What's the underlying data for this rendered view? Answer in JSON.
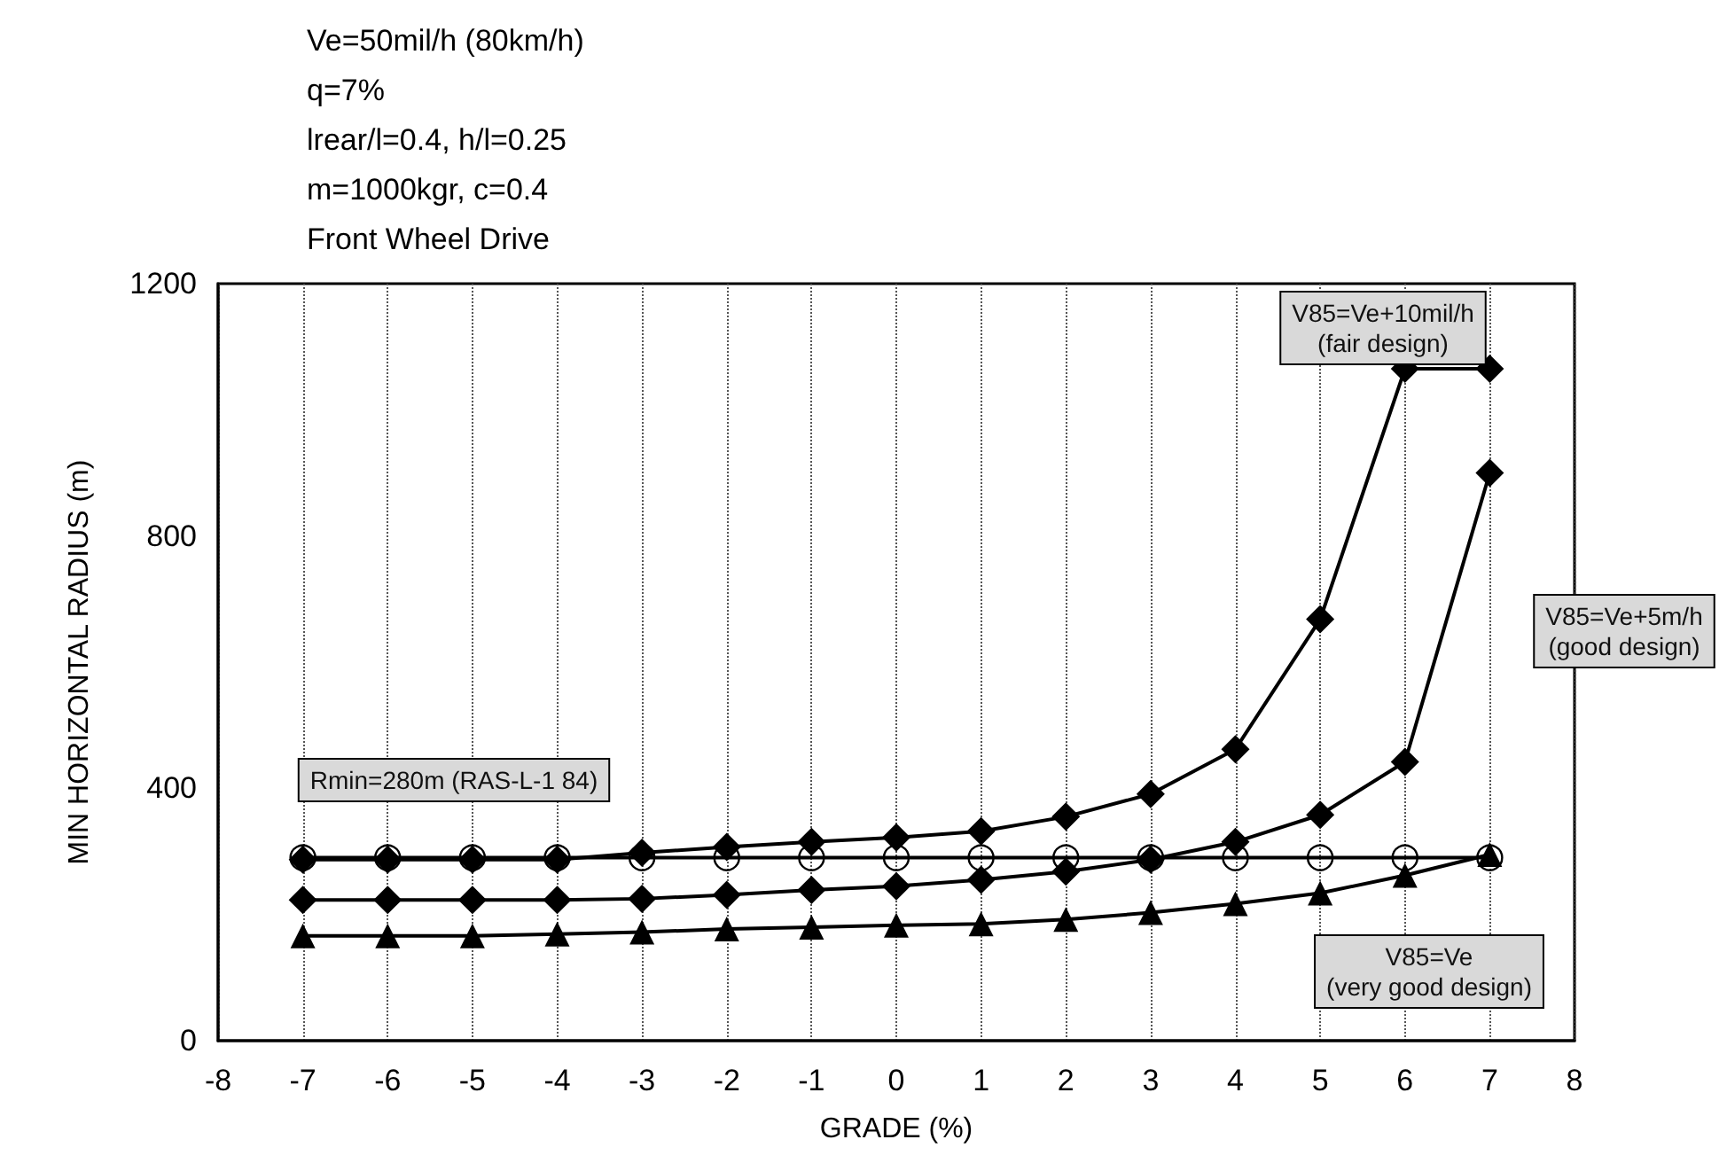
{
  "chart_data": {
    "type": "line",
    "title": "Ve=50mil/h (80km/h)\nq=7%\nlrear/l=0.4, h/l=0.25\nm=1000kgr, c=0.4\nFront Wheel Drive",
    "xlabel": "GRADE (%)",
    "ylabel": "MIN HORIZONTAL RADIUS (m)",
    "x": [
      -7,
      -6,
      -5,
      -4,
      -3,
      -2,
      -1,
      0,
      1,
      2,
      3,
      4,
      5,
      6,
      7
    ],
    "series": [
      {
        "name": "V85=Ve+10mil/h\n(fair design)",
        "color": "#000000",
        "marker": "diamond",
        "values": [
          287,
          287,
          287,
          287,
          298,
          307,
          315,
          322,
          332,
          355,
          391,
          462,
          668,
          1065,
          1065
        ]
      },
      {
        "name": "V85=Ve+5m/h\n(good design)",
        "color": "#000000",
        "marker": "diamond",
        "values": [
          223,
          223,
          223,
          223,
          225,
          231,
          239,
          245,
          255,
          268,
          287,
          315,
          358,
          442,
          900
        ]
      },
      {
        "name": "V85=Ve\n(very good design)",
        "color": "#000000",
        "marker": "triangle",
        "values": [
          166,
          166,
          166,
          169,
          172,
          177,
          180,
          183,
          185,
          192,
          203,
          217,
          234,
          262,
          295
        ]
      },
      {
        "name": "Rmin=280m (RAS-L-1 84)",
        "color": "#000000",
        "marker": "circle",
        "values": [
          290,
          290,
          290,
          290,
          290,
          290,
          290,
          290,
          290,
          290,
          290,
          290,
          290,
          290,
          290
        ]
      }
    ],
    "xlim": [
      -8,
      8
    ],
    "xticks": [
      -8,
      -7,
      -6,
      -5,
      -4,
      -3,
      -2,
      -1,
      0,
      1,
      2,
      3,
      4,
      5,
      6,
      7,
      8
    ],
    "ylim": [
      0,
      1200
    ],
    "yticks": [
      0,
      400,
      800,
      1200
    ],
    "grid": "x",
    "legend": false,
    "line_style": "solid"
  }
}
